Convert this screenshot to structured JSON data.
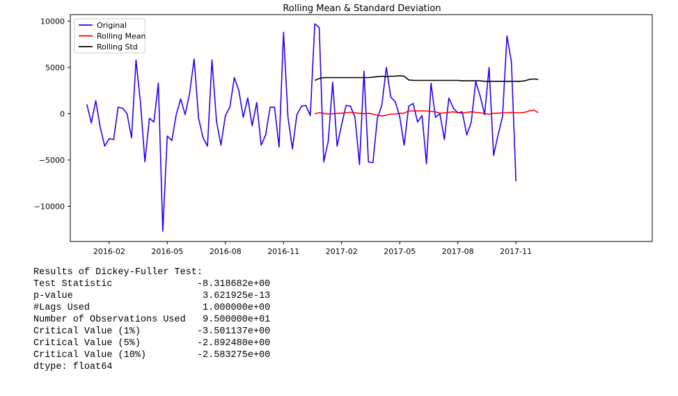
{
  "chart_data": {
    "type": "line",
    "title": "Rolling Mean & Standard Deviation",
    "xlabel": "",
    "ylabel": "",
    "ylim": [
      -13800,
      10700
    ],
    "xlim": [
      -3.7,
      126.5
    ],
    "x_start_label": "2015-12-27",
    "x_step": "weekly",
    "xticks": [
      {
        "x": 5,
        "label": "2016-02"
      },
      {
        "x": 18,
        "label": "2016-05"
      },
      {
        "x": 31,
        "label": "2016-08"
      },
      {
        "x": 44,
        "label": "2016-11"
      },
      {
        "x": 57,
        "label": "2017-02"
      },
      {
        "x": 70,
        "label": "2017-05"
      },
      {
        "x": 83,
        "label": "2017-08"
      },
      {
        "x": 96,
        "label": "2017-11"
      }
    ],
    "yticks": [
      10000,
      5000,
      0,
      -5000,
      -10000
    ],
    "ytick_labels": [
      "10000",
      "5000",
      "0",
      "−5000",
      "−10000"
    ],
    "legend": {
      "placement": "top-left"
    },
    "series": [
      {
        "name": "Original",
        "color": "#1f00ff",
        "x_start": 0,
        "values": [
          1000,
          -1000,
          1400,
          -1500,
          -3500,
          -2700,
          -2800,
          700,
          600,
          0,
          -2600,
          5800,
          1200,
          -5200,
          -500,
          -900,
          3300,
          -12700,
          -2400,
          -2900,
          -100,
          1600,
          -100,
          2200,
          5900,
          -500,
          -2600,
          -3500,
          5800,
          -800,
          -3400,
          -200,
          700,
          3900,
          2500,
          -400,
          1700,
          -1300,
          1200,
          -3400,
          -2300,
          700,
          700,
          -3600,
          8800,
          -400,
          -3800,
          -100,
          800,
          900,
          -200,
          9700,
          9300,
          -5200,
          -3000,
          3400,
          -3500,
          -1200,
          900,
          800,
          -400,
          -5500,
          4600,
          -5200,
          -5300,
          -500,
          900,
          5000,
          1800,
          1300,
          -300,
          -3400,
          800,
          1100,
          -900,
          -200,
          -5400,
          3300,
          -400,
          0,
          -2800,
          1700,
          600,
          100,
          200,
          -2300,
          -900,
          3500,
          1900,
          -100,
          5000,
          -4500,
          -2300,
          -300,
          8400,
          5600,
          -7300
        ]
      },
      {
        "name": "Rolling Mean",
        "color": "#ff0000",
        "x_start": 51,
        "values": [
          0,
          100,
          50,
          -50,
          0,
          50,
          50,
          100,
          150,
          100,
          50,
          0,
          50,
          -50,
          -150,
          -250,
          -150,
          -50,
          -50,
          50,
          50,
          300,
          300,
          300,
          300,
          300,
          250,
          200,
          50,
          100,
          150,
          200,
          100,
          50,
          150,
          200,
          150,
          100,
          0,
          -50,
          50,
          50,
          100,
          100,
          150,
          100,
          100,
          150,
          300,
          400,
          100
        ]
      },
      {
        "name": "Rolling Std",
        "color": "#000000",
        "x_start": 51,
        "values": [
          3600,
          3800,
          3900,
          3900,
          3900,
          3900,
          3900,
          3900,
          3900,
          3900,
          3900,
          3900,
          3900,
          3950,
          4000,
          4050,
          4000,
          4050,
          4050,
          4100,
          4050,
          3650,
          3600,
          3600,
          3600,
          3600,
          3600,
          3600,
          3600,
          3600,
          3600,
          3600,
          3600,
          3550,
          3550,
          3550,
          3550,
          3550,
          3500,
          3500,
          3500,
          3500,
          3500,
          3500,
          3500,
          3500,
          3500,
          3550,
          3700,
          3750,
          3700
        ]
      }
    ]
  },
  "df_test": {
    "header": "Results of Dickey-Fuller Test:",
    "rows": [
      {
        "label": "Test Statistic",
        "value": "-8.318682e+00"
      },
      {
        "label": "p-value",
        "value": "3.621925e-13"
      },
      {
        "label": "#Lags Used",
        "value": "1.000000e+00"
      },
      {
        "label": "Number of Observations Used",
        "value": "9.500000e+01"
      },
      {
        "label": "Critical Value (1%)",
        "value": "-3.501137e+00"
      },
      {
        "label": "Critical Value (5%)",
        "value": "-2.892480e+00"
      },
      {
        "label": "Critical Value (10%)",
        "value": "-2.583275e+00"
      }
    ],
    "footer": "dtype: float64"
  }
}
